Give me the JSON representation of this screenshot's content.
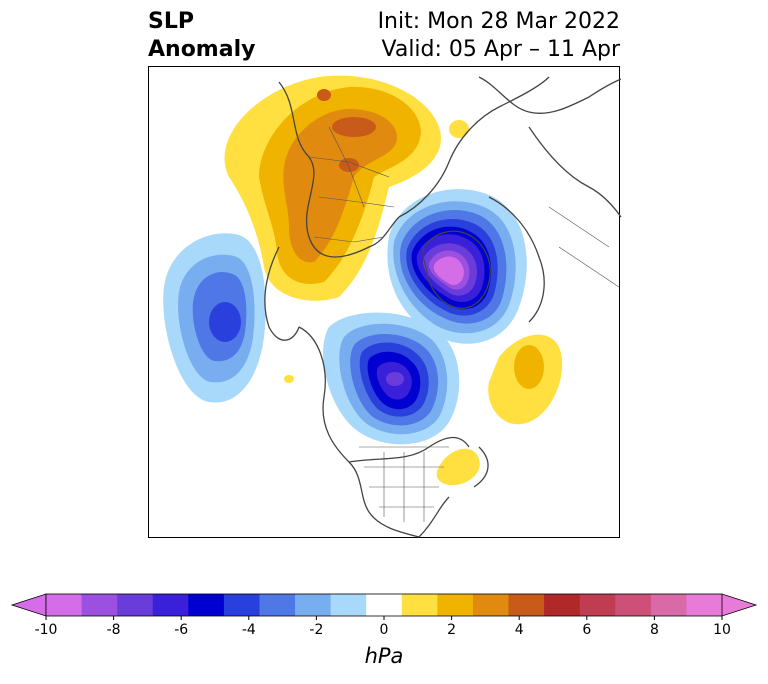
{
  "title": {
    "variable_line1": "SLP",
    "variable_line2": "Anomaly",
    "init": "Init: Mon 28 Mar 2022",
    "valid": "Valid: 05 Apr – 11 Apr"
  },
  "colorbar": {
    "unit": "hPa",
    "ticks": [
      "-10",
      "-8",
      "-6",
      "-4",
      "-2",
      "0",
      "2",
      "4",
      "6",
      "8",
      "10"
    ],
    "colors": [
      "#d56de8",
      "#9b50e0",
      "#6a3ddb",
      "#3a20d8",
      "#0000d0",
      "#2a40dc",
      "#4f78e6",
      "#78aef0",
      "#a8d8fa",
      "#ffffff",
      "#ffe040",
      "#f0b400",
      "#e08a10",
      "#c85a1a",
      "#b02828",
      "#c03c50",
      "#cc5078",
      "#d86aa8",
      "#e87ad8"
    ],
    "extend": "both"
  }
}
